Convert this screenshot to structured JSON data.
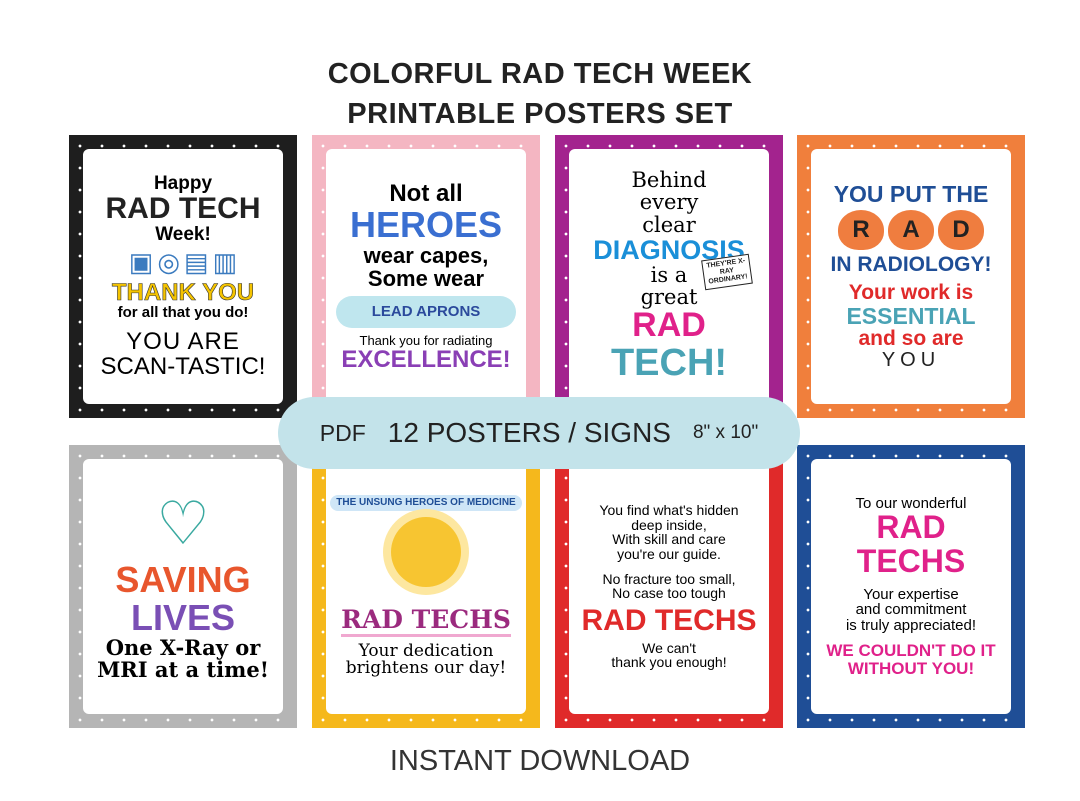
{
  "title": {
    "line1": "COLORFUL RAD TECH WEEK",
    "line2": "PRINTABLE POSTERS SET"
  },
  "banner": {
    "format": "PDF",
    "count": "12 POSTERS / SIGNS",
    "size": "8\" x 10\""
  },
  "footer": "INSTANT DOWNLOAD",
  "colors": {
    "black": "#1e1e1e",
    "pink": "#f4b6c2",
    "purple": "#a3238e",
    "orange": "#f07f3c",
    "gray": "#b5b5b5",
    "yellow": "#f5b81c",
    "red": "#e02a2a",
    "blue": "#1f4e96",
    "banner": "#c3e3ea"
  },
  "posters": [
    {
      "lines": [
        "Happy",
        "RAD TECH",
        "Week!",
        "THANK YOU",
        "for all that you do!",
        "YOU ARE",
        "SCAN-TASTIC!"
      ],
      "icons": [
        "mri-scanner-icon",
        "ct-scanner-icon",
        "xray-chest-icon",
        "ultrasound-machine-icon"
      ]
    },
    {
      "lines": [
        "Not all",
        "HEROES",
        "wear capes,",
        "Some wear",
        "LEAD APRONS",
        "Thank you for radiating",
        "EXCELLENCE!"
      ]
    },
    {
      "lines": [
        "Behind",
        "every",
        "clear",
        "DIAGNOSIS",
        "is a",
        "great",
        "RAD",
        "TECH!"
      ],
      "sign": "THEY'RE X-RAY ORDINARY!"
    },
    {
      "lines": [
        "YOU PUT THE",
        "R",
        "A",
        "D",
        "IN RADIOLOGY!",
        "Your work is",
        "ESSENTIAL",
        "and so are",
        "YOU"
      ]
    },
    {
      "lines": [
        "SAVING",
        "LIVES",
        "One X-Ray or",
        "MRI at a time!"
      ]
    },
    {
      "lines": [
        "THE UNSUNG HEROES OF MEDICINE",
        "RAD TECHS",
        "Your dedication",
        "brightens our day!"
      ]
    },
    {
      "lines": [
        "You find what's hidden",
        "deep inside,",
        "With skill and care",
        "you're our guide.",
        "No fracture too small,",
        "No case too tough",
        "RAD TECHS",
        "We can't",
        "thank you enough!"
      ]
    },
    {
      "lines": [
        "To our wonderful",
        "RAD",
        "TECHS",
        "Your expertise",
        "and commitment",
        "is truly appreciated!",
        "WE COULDN'T DO IT",
        "WITHOUT YOU!"
      ]
    }
  ]
}
